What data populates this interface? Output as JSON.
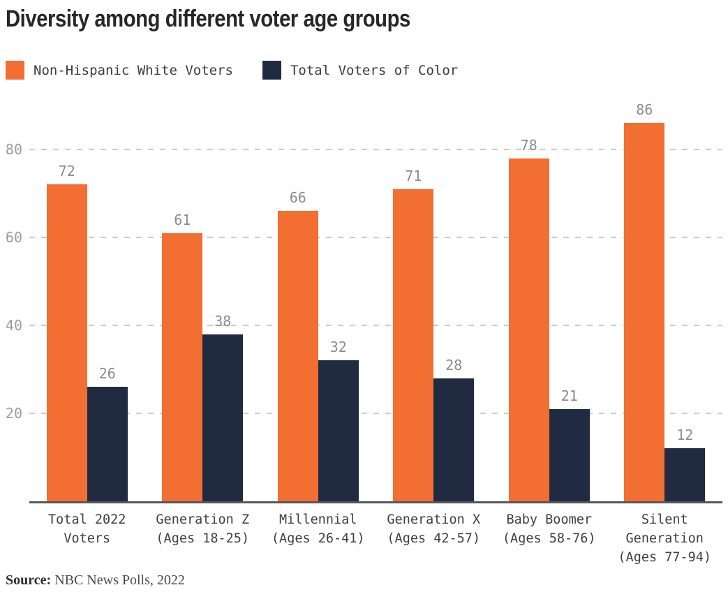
{
  "title": "Diversity among different voter age groups",
  "source": {
    "label": "Source:",
    "text": " NBC News Polls, 2022"
  },
  "chart_data": {
    "type": "bar",
    "title": "Diversity among different voter age groups",
    "categories": [
      "Total 2022\nVoters",
      "Generation Z\n(Ages 18-25)",
      "Millennial\n(Ages 26-41)",
      "Generation X\n(Ages 42-57)",
      "Baby Boomer\n(Ages 58-76)",
      "Silent\nGeneration\n(Ages 77-94)"
    ],
    "series": [
      {
        "name": "Non-Hispanic White Voters",
        "color": "#F36E33",
        "values": [
          72,
          61,
          66,
          71,
          78,
          86
        ]
      },
      {
        "name": "Total Voters of Color",
        "color": "#202B42",
        "values": [
          26,
          38,
          32,
          28,
          21,
          12
        ]
      }
    ],
    "yticks": [
      20,
      40,
      60,
      80
    ],
    "ylim": [
      0,
      90
    ],
    "grid": "dashed-horizontal",
    "legend_position": "top-left",
    "value_labels": true,
    "value_label_color": "#8c8c8c",
    "tick_label_color": "#9c9c9c",
    "axis_line_color": "#57585c",
    "gridline_color": "#cccccc"
  }
}
